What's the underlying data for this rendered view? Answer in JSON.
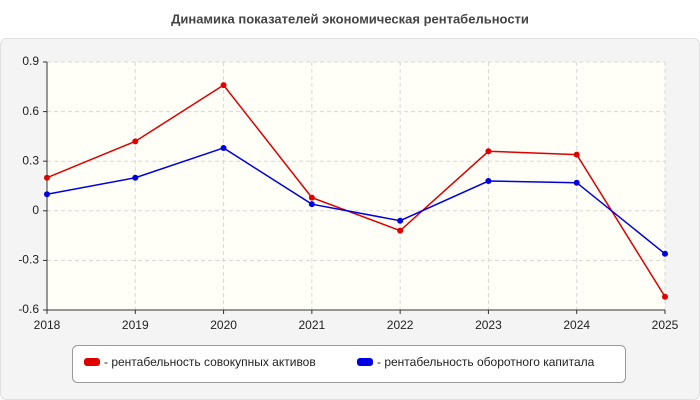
{
  "chart_data": {
    "type": "line",
    "title": "Динамика показателей экономическая рентабельности",
    "x": [
      2018,
      2019,
      2020,
      2021,
      2022,
      2023,
      2024,
      2025
    ],
    "xlim": [
      2018,
      2025
    ],
    "xticks": [
      2018,
      2019,
      2020,
      2021,
      2022,
      2023,
      2024,
      2025
    ],
    "ylim": [
      -0.6,
      0.9
    ],
    "yticks": [
      0.9,
      0.6,
      0.3,
      0,
      -0.3,
      -0.6
    ],
    "grid": true,
    "legend": "bottom",
    "series": [
      {
        "name": "- рентабельность совокупных активов",
        "color": "#e00000",
        "values": [
          0.2,
          0.42,
          0.76,
          0.08,
          -0.12,
          0.36,
          0.34,
          -0.52
        ]
      },
      {
        "name": "- рентабельность оборотного капитала",
        "color": "#0000e0",
        "values": [
          0.1,
          0.2,
          0.38,
          0.04,
          -0.06,
          0.18,
          0.17,
          -0.26
        ]
      }
    ]
  }
}
